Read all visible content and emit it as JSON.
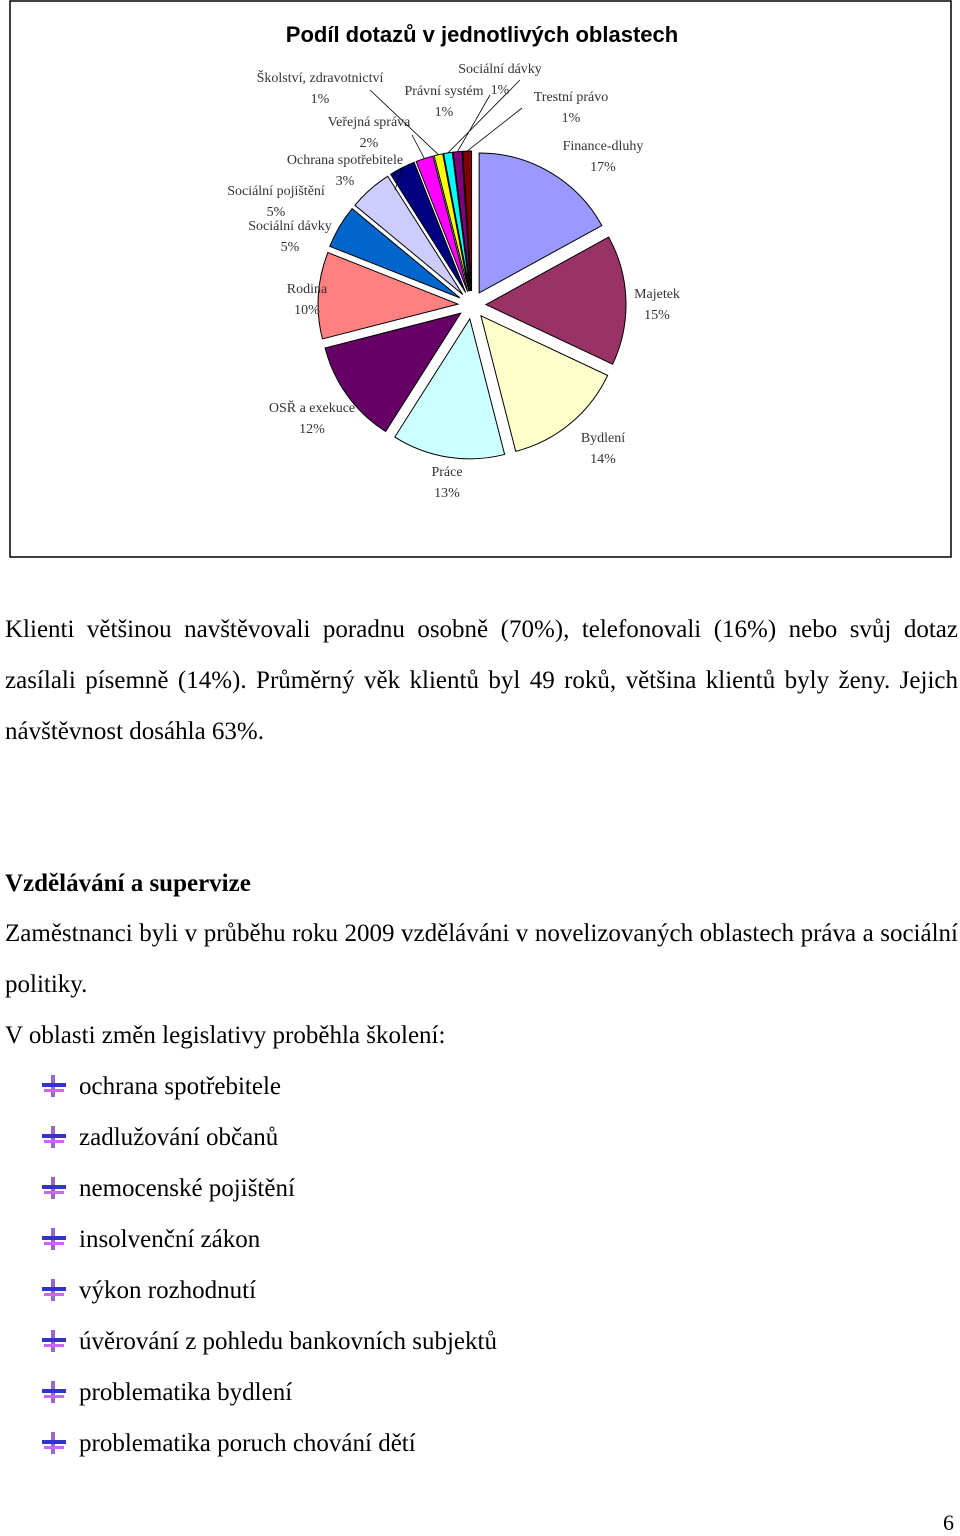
{
  "chart_data": {
    "type": "pie",
    "title": "Podíl dotazů v jednotlivých oblastech",
    "categories": [
      "Finance-dluhy",
      "Majetek",
      "Bydlení",
      "Práce",
      "OSŘ a exekuce",
      "Rodina",
      "Sociální dávky",
      "Sociální pojištění",
      "Ochrana spotřebitele",
      "Veřejná správa",
      "Školství, zdravotnictví",
      "Sociální dávky",
      "Právní systém",
      "Trestní právo"
    ],
    "values": [
      17,
      15,
      14,
      13,
      12,
      10,
      5,
      5,
      3,
      2,
      1,
      1,
      1,
      1
    ],
    "value_labels": [
      "17%",
      "15%",
      "14%",
      "13%",
      "12%",
      "10%",
      "5%",
      "5%",
      "3%",
      "2%",
      "1%",
      "1%",
      "1%",
      "1%"
    ],
    "colors": [
      "#9999ff",
      "#993366",
      "#ffffcc",
      "#ccffff",
      "#660066",
      "#ff8080",
      "#0066cc",
      "#ccccff",
      "#000080",
      "#ff00ff",
      "#ffff00",
      "#00ffff",
      "#800080",
      "#800000"
    ]
  },
  "document": {
    "paragraphs": [
      "Klienti většinou navštěvovali poradnu osobně (70%), telefonovali (16%) nebo svůj dotaz zasílali písemně (14%). Průměrný věk klientů byl 49 roků, většina klientů byly ženy. Jejich návštěvnost dosáhla 63%.",
      "Vzdělávání a supervize",
      "Zaměstnanci byli v průběhu roku 2009 vzděláváni v novelizovaných oblastech práva a sociální politiky.",
      "V oblasti změn legislativy proběhla školení:"
    ],
    "list": [
      "ochrana spotřebitele",
      "zadlužování občanů",
      "nemocenské pojištění",
      "insolvenční zákon",
      "výkon rozhodnutí",
      "úvěrování z pohledu bankovních subjektů",
      "problematika bydlení",
      "problematika poruch chování dětí"
    ],
    "page_number": "6"
  }
}
